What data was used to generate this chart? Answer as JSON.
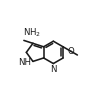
{
  "bg_color": "#ffffff",
  "bond_color": "#1a1a1a",
  "lw": 1.15,
  "figsize": [
    0.92,
    0.9
  ],
  "dpi": 100,
  "xlim": [
    0,
    92
  ],
  "ylim": [
    0,
    90
  ],
  "fs": 6.2
}
